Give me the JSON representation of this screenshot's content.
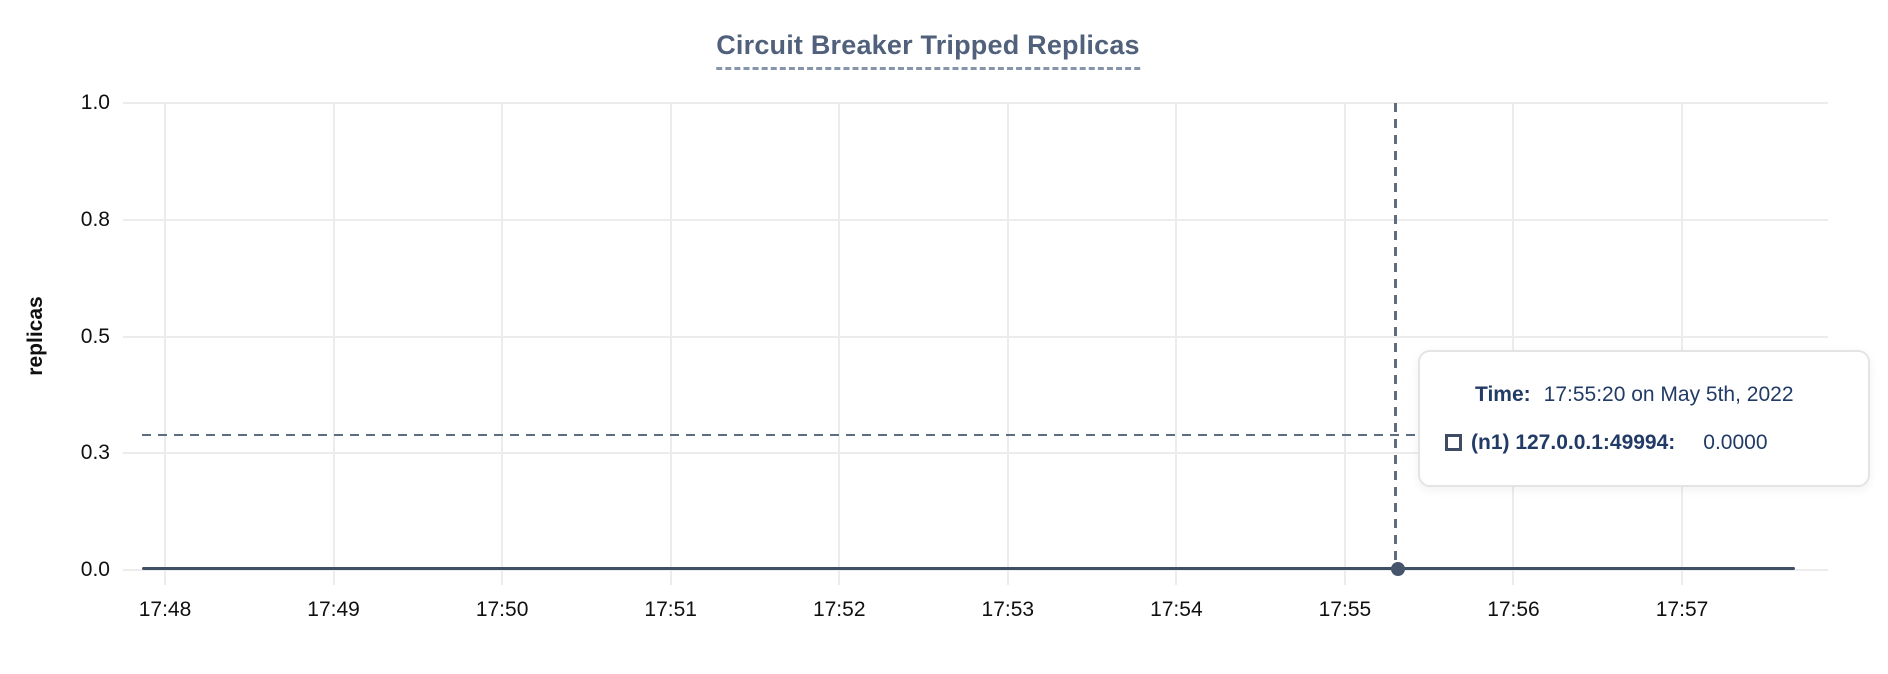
{
  "chart": {
    "title": "Circuit Breaker Tripped Replicas",
    "y_axis_label": "replicas"
  },
  "tooltip": {
    "time_label": "Time:",
    "time_value": "17:55:20 on May 5th, 2022",
    "series_label": "(n1) 127.0.0.1:49994:",
    "series_value": "0.0000"
  },
  "chart_data": {
    "type": "line",
    "title": "Circuit Breaker Tripped Replicas",
    "xlabel": "",
    "ylabel": "replicas",
    "x_ticks": [
      "17:48",
      "17:49",
      "17:50",
      "17:51",
      "17:52",
      "17:53",
      "17:54",
      "17:55",
      "17:56",
      "17:57"
    ],
    "y_tick_labels_top_to_bottom": [
      "1.0",
      "0.8",
      "0.5",
      "0.3",
      "0.0"
    ],
    "ylim": [
      0.0,
      1.0
    ],
    "grid": true,
    "legend_position": "none",
    "series": [
      {
        "name": "(n1) 127.0.0.1:49994",
        "x": [
          "17:48",
          "17:49",
          "17:50",
          "17:51",
          "17:52",
          "17:53",
          "17:54",
          "17:55",
          "17:56",
          "17:57"
        ],
        "values": [
          0,
          0,
          0,
          0,
          0,
          0,
          0,
          0,
          0,
          0
        ]
      }
    ],
    "hovered_point": {
      "time": "17:55:20 on May 5th, 2022",
      "series": "(n1) 127.0.0.1:49994",
      "value": "0.0000"
    }
  },
  "colors": {
    "title": "#51607b",
    "title_underline": "#8795ab",
    "axis_text": "#101010",
    "gridline": "#ececec",
    "series_line": "#405064",
    "crosshair": "#5d6e83",
    "point_marker": "#46556c",
    "tooltip_text": "#213a66",
    "tooltip_border": "#e4e4e4",
    "tooltip_marker_outline": "#3e4d63"
  }
}
